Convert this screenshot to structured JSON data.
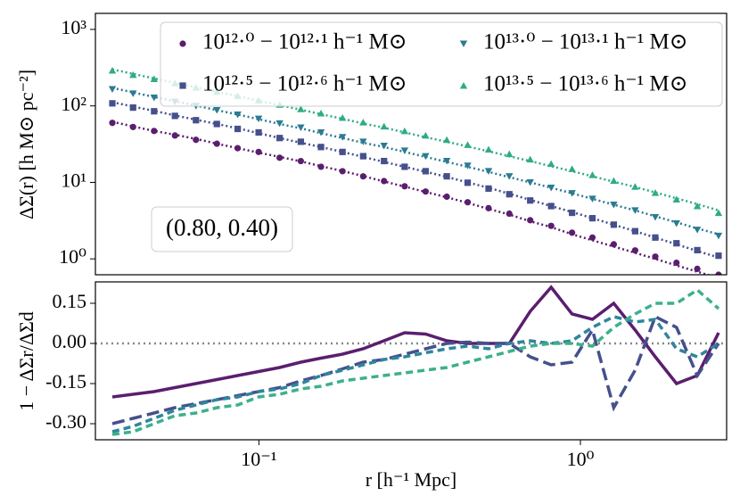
{
  "chart_data": [
    {
      "type": "scatter",
      "ylabel": "ΔΣ(r) [h M⊙ pc⁻²]",
      "annotation": "(0.80, 0.40)",
      "log_x": true,
      "log_y": true,
      "legend": "upper right",
      "x": [
        0.035,
        0.0406,
        0.0472,
        0.0548,
        0.0637,
        0.074,
        0.0859,
        0.0998,
        0.116,
        0.135,
        0.156,
        0.182,
        0.211,
        0.245,
        0.284,
        0.33,
        0.384,
        0.446,
        0.518,
        0.601,
        0.698,
        0.811,
        0.942,
        1.09,
        1.27,
        1.48,
        1.71,
        1.99,
        2.31,
        2.69
      ],
      "xlim": [
        0.031,
        2.85
      ],
      "ylim": [
        0.62,
        1620
      ],
      "yticks": [
        {
          "value": 1,
          "label": "10⁰"
        },
        {
          "value": 10,
          "label": "10¹"
        },
        {
          "value": 100,
          "label": "10²"
        },
        {
          "value": 1000,
          "label": "10³"
        }
      ],
      "series": [
        {
          "name": "10¹²·⁰ − 10¹²·¹ h⁻¹ M⊙",
          "color": "#5b1e6e",
          "marker": "o",
          "values": [
            60,
            53,
            47,
            41,
            36,
            32,
            28,
            25,
            21,
            19,
            16,
            14,
            12,
            10.4,
            8.9,
            7.6,
            6.5,
            5.5,
            4.6,
            3.9,
            3.2,
            2.7,
            2.2,
            1.9,
            1.55,
            1.29,
            1.07,
            0.89,
            0.74,
            0.62
          ],
          "model": [
            62,
            54,
            47,
            42,
            37,
            32,
            28,
            24.5,
            21.5,
            18.8,
            16.3,
            14.1,
            12.1,
            10.3,
            8.8,
            7.5,
            6.4,
            5.4,
            4.5,
            3.8,
            3.1,
            2.6,
            2.1,
            1.75,
            1.45,
            1.2,
            1.0,
            0.82,
            0.68,
            0.56
          ]
        },
        {
          "name": "10¹²·⁵ − 10¹²·⁶ h⁻¹ M⊙",
          "color": "#45508c",
          "marker": "s",
          "values": [
            108,
            95,
            85,
            74,
            65,
            58,
            50,
            45,
            38,
            34,
            29,
            25,
            22,
            19,
            16,
            14,
            12,
            9.9,
            8.3,
            7.0,
            5.8,
            4.9,
            4.0,
            3.4,
            2.8,
            2.3,
            1.9,
            1.6,
            1.3,
            1.1
          ],
          "model": [
            112,
            98,
            86,
            75,
            66,
            58,
            51,
            44,
            38,
            33,
            29,
            25,
            21.5,
            18.5,
            16,
            13.8,
            11.8,
            10,
            8.5,
            7.1,
            5.9,
            4.9,
            4.1,
            3.4,
            2.8,
            2.3,
            1.9,
            1.55,
            1.27,
            1.04
          ]
        },
        {
          "name": "10¹³·⁰ − 10¹³·¹ h⁻¹ M⊙",
          "color": "#2b7b93",
          "marker": "v",
          "values": [
            165,
            145,
            128,
            113,
            100,
            88,
            77,
            68,
            59,
            52,
            45,
            39,
            34,
            30,
            26,
            22,
            19,
            16.5,
            14,
            12,
            10,
            8.5,
            7.2,
            6.1,
            5.1,
            4.3,
            3.5,
            2.9,
            2.4,
            2.0
          ],
          "model": [
            172,
            150,
            131,
            115,
            101,
            88,
            77,
            67,
            58,
            51,
            44,
            38,
            33,
            29,
            25,
            21.5,
            18.5,
            16,
            13.7,
            11.7,
            10,
            8.5,
            7.2,
            6.1,
            5.1,
            4.3,
            3.6,
            3.0,
            2.5,
            2.1
          ]
        },
        {
          "name": "10¹³·⁵ − 10¹³·⁶ h⁻¹ M⊙",
          "color": "#2fab88",
          "marker": "^",
          "values": [
            290,
            255,
            225,
            198,
            174,
            153,
            135,
            118,
            104,
            91,
            80,
            70,
            61,
            54,
            47,
            41,
            36,
            31,
            27,
            23.5,
            20,
            17.5,
            15,
            12.5,
            10.5,
            8.8,
            7.3,
            6.0,
            4.9,
            4.0
          ],
          "model": [
            300,
            262,
            229,
            200,
            175,
            153,
            134,
            117,
            102,
            89,
            78,
            68,
            59,
            52,
            45,
            39,
            34,
            29.5,
            25.5,
            22,
            19,
            16.3,
            14,
            12,
            10.2,
            8.7,
            7.4,
            6.2,
            5.2,
            4.3
          ]
        }
      ]
    },
    {
      "type": "line",
      "xlabel": "r [h⁻¹ Mpc]",
      "ylabel": "1 − ΔΣr/ΔΣd",
      "log_x": true,
      "x": [
        0.035,
        0.0406,
        0.0472,
        0.0548,
        0.0637,
        0.074,
        0.0859,
        0.0998,
        0.116,
        0.135,
        0.156,
        0.182,
        0.211,
        0.245,
        0.284,
        0.33,
        0.384,
        0.446,
        0.518,
        0.601,
        0.698,
        0.811,
        0.942,
        1.09,
        1.27,
        1.48,
        1.71,
        1.99,
        2.31,
        2.69
      ],
      "xlim": [
        0.031,
        2.85
      ],
      "xticks": [
        {
          "value": 0.1,
          "label": "10⁻¹"
        },
        {
          "value": 1,
          "label": "10⁰"
        }
      ],
      "ylim": [
        -0.36,
        0.23
      ],
      "yticks": [
        0.15,
        {
          "value": 0,
          "label": "0.00"
        },
        -0.15,
        {
          "value": -0.3,
          "label": "-0.30"
        }
      ],
      "reference_line": 0,
      "series": [
        {
          "color": "#5b1e6e",
          "linestyle": "solid",
          "values": [
            -0.2,
            -0.19,
            -0.18,
            -0.165,
            -0.15,
            -0.135,
            -0.12,
            -0.105,
            -0.09,
            -0.07,
            -0.055,
            -0.04,
            -0.02,
            0.01,
            0.04,
            0.035,
            0.01,
            0,
            0,
            0,
            0.12,
            0.21,
            0.11,
            0.09,
            0.15,
            0.05,
            -0.05,
            -0.15,
            -0.12,
            0.04
          ]
        },
        {
          "color": "#45508c",
          "linestyle": "dashed",
          "values": [
            -0.3,
            -0.28,
            -0.26,
            -0.24,
            -0.225,
            -0.21,
            -0.195,
            -0.18,
            -0.165,
            -0.14,
            -0.12,
            -0.095,
            -0.07,
            -0.06,
            -0.04,
            -0.02,
            0,
            0.005,
            0,
            0,
            -0.05,
            -0.08,
            -0.07,
            0.05,
            -0.24,
            -0.1,
            0.1,
            0.06,
            -0.12,
            0
          ]
        },
        {
          "color": "#2e869c",
          "linestyle": "dashed",
          "values": [
            -0.33,
            -0.31,
            -0.28,
            -0.25,
            -0.23,
            -0.21,
            -0.2,
            -0.18,
            -0.17,
            -0.15,
            -0.12,
            -0.1,
            -0.08,
            -0.06,
            -0.05,
            -0.035,
            -0.02,
            -0.01,
            -0.02,
            0,
            0.01,
            0,
            0.01,
            0.06,
            0.1,
            0.08,
            0.09,
            -0.02,
            -0.05,
            0
          ]
        },
        {
          "color": "#3cb08c",
          "linestyle": "dashed",
          "values": [
            -0.34,
            -0.33,
            -0.3,
            -0.27,
            -0.26,
            -0.24,
            -0.23,
            -0.2,
            -0.19,
            -0.17,
            -0.16,
            -0.14,
            -0.13,
            -0.12,
            -0.11,
            -0.1,
            -0.09,
            -0.07,
            -0.05,
            -0.03,
            -0.01,
            0,
            0,
            -0.01,
            0.06,
            0.11,
            0.15,
            0.15,
            0.2,
            0.13
          ]
        }
      ]
    }
  ]
}
